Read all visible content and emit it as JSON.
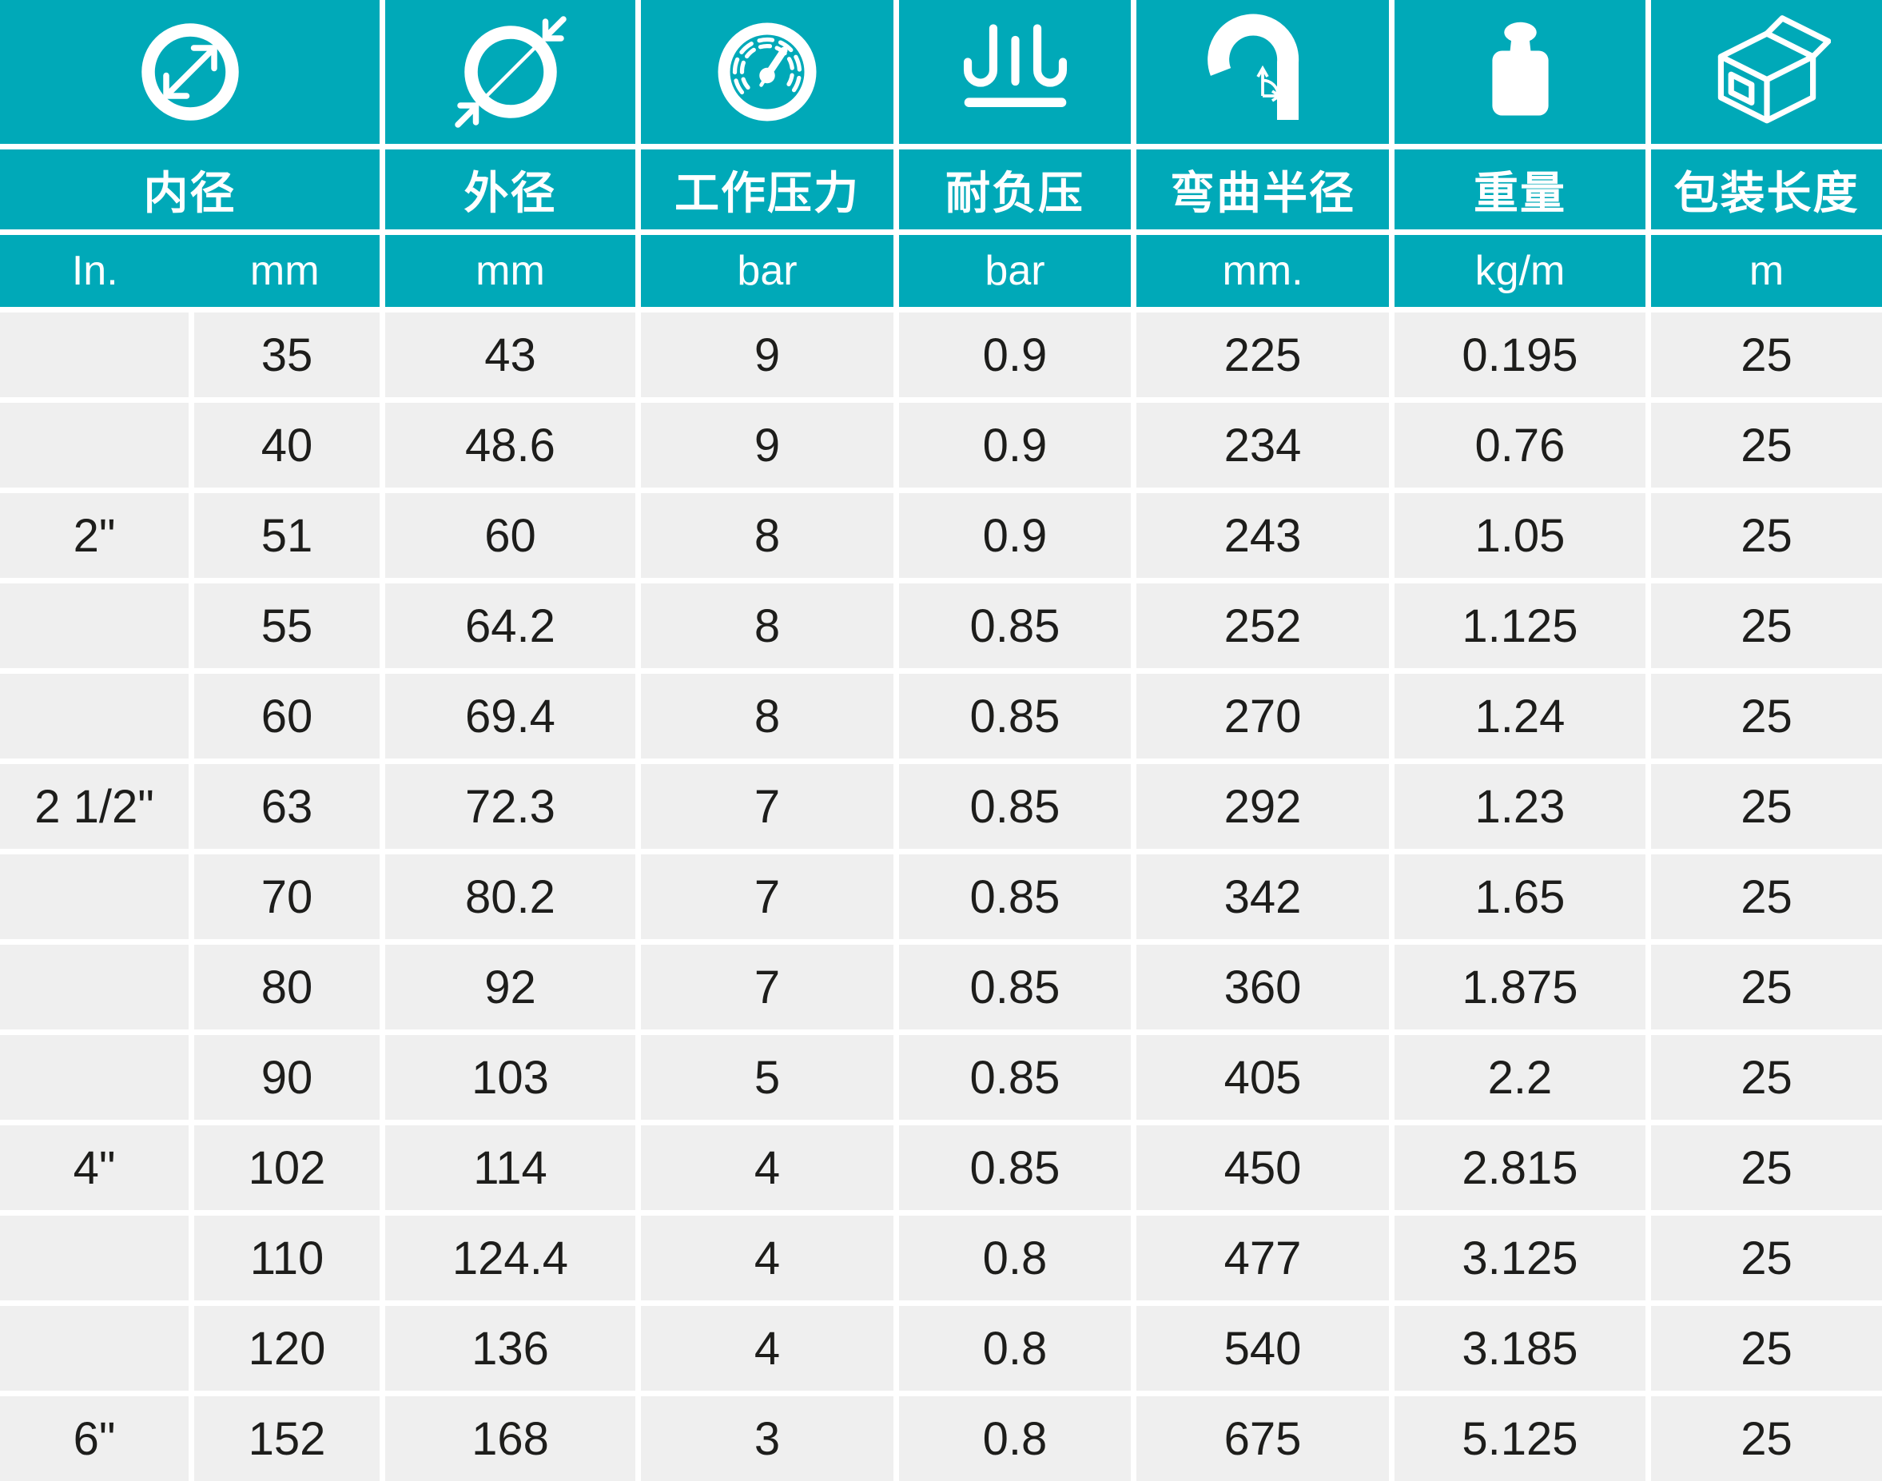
{
  "colors": {
    "teal": "#00A9B8",
    "cell_gray": "#efefef",
    "gap_white": "#ffffff",
    "data_text": "#1d1d1b",
    "header_text": "#ffffff"
  },
  "chart_data": {
    "type": "table",
    "columns": [
      {
        "label": "内径",
        "icon": "inner-diameter-icon",
        "units": [
          "In.",
          "mm"
        ]
      },
      {
        "label": "外径",
        "icon": "outer-diameter-icon",
        "units": [
          "mm"
        ]
      },
      {
        "label": "工作压力",
        "icon": "pressure-gauge-icon",
        "units": [
          "bar"
        ]
      },
      {
        "label": "耐负压",
        "icon": "vacuum-resistance-icon",
        "units": [
          "bar"
        ]
      },
      {
        "label": "弯曲半径",
        "icon": "bend-radius-icon",
        "units": [
          "mm."
        ]
      },
      {
        "label": "重量",
        "icon": "weight-icon",
        "units": [
          "kg/m"
        ]
      },
      {
        "label": "包装长度",
        "icon": "package-length-icon",
        "units": [
          "m"
        ]
      }
    ],
    "rows": [
      [
        "",
        "35",
        "43",
        "9",
        "0.9",
        "225",
        "0.195",
        "25"
      ],
      [
        "",
        "40",
        "48.6",
        "9",
        "0.9",
        "234",
        "0.76",
        "25"
      ],
      [
        "2\"",
        "51",
        "60",
        "8",
        "0.9",
        "243",
        "1.05",
        "25"
      ],
      [
        "",
        "55",
        "64.2",
        "8",
        "0.85",
        "252",
        "1.125",
        "25"
      ],
      [
        "",
        "60",
        "69.4",
        "8",
        "0.85",
        "270",
        "1.24",
        "25"
      ],
      [
        "2 1/2\"",
        "63",
        "72.3",
        "7",
        "0.85",
        "292",
        "1.23",
        "25"
      ],
      [
        "",
        "70",
        "80.2",
        "7",
        "0.85",
        "342",
        "1.65",
        "25"
      ],
      [
        "",
        "80",
        "92",
        "7",
        "0.85",
        "360",
        "1.875",
        "25"
      ],
      [
        "",
        "90",
        "103",
        "5",
        "0.85",
        "405",
        "2.2",
        "25"
      ],
      [
        "4\"",
        "102",
        "114",
        "4",
        "0.85",
        "450",
        "2.815",
        "25"
      ],
      [
        "",
        "110",
        "124.4",
        "4",
        "0.8",
        "477",
        "3.125",
        "25"
      ],
      [
        "",
        "120",
        "136",
        "4",
        "0.8",
        "540",
        "3.185",
        "25"
      ],
      [
        "6\"",
        "152",
        "168",
        "3",
        "0.8",
        "675",
        "5.125",
        "25"
      ]
    ]
  }
}
